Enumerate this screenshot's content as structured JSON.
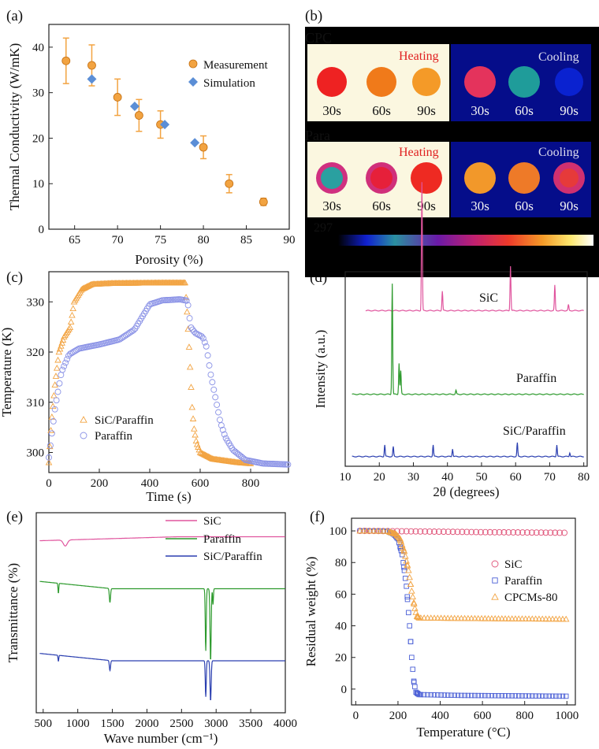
{
  "chart_data": [
    {
      "panel": "(a)",
      "type": "scatter",
      "xlabel": "Porosity (%)",
      "ylabel": "Thermal Conductivity (W/mK)",
      "xlim": [
        62,
        90
      ],
      "ylim": [
        0,
        45
      ],
      "xticks": [
        65,
        70,
        75,
        80,
        85,
        90
      ],
      "yticks": [
        0,
        10,
        20,
        30,
        40
      ],
      "series": [
        {
          "name": "Measurement",
          "color": "#f2a341",
          "points": [
            [
              64,
              37,
              5
            ],
            [
              67,
              36,
              4.5
            ],
            [
              70,
              29,
              4
            ],
            [
              72.5,
              25,
              3.5
            ],
            [
              75,
              23,
              3
            ],
            [
              80,
              18,
              2.5
            ],
            [
              83,
              10,
              2
            ],
            [
              87,
              6,
              0.8
            ]
          ]
        },
        {
          "name": "Simulation",
          "color": "#5b8ed6",
          "points": [
            [
              67,
              33
            ],
            [
              72,
              27
            ],
            [
              75.5,
              23
            ],
            [
              79,
              19
            ]
          ]
        }
      ]
    },
    {
      "panel": "(b)",
      "type": "image",
      "rows": [
        {
          "label": "CPC",
          "heating": "Heating",
          "cooling": "Cooling",
          "times": [
            "30s",
            "60s",
            "90s",
            "30s",
            "60s",
            "90s"
          ]
        },
        {
          "label": "Para",
          "heating": "Heating",
          "cooling": "Cooling",
          "times": [
            "30s",
            "60s",
            "90s",
            "30s",
            "60s",
            "90s"
          ]
        }
      ],
      "scale_min": "297"
    },
    {
      "panel": "(c)",
      "type": "line",
      "xlabel": "Time (s)",
      "ylabel": "Temperature (K)",
      "xlim": [
        0,
        950
      ],
      "ylim": [
        296,
        336
      ],
      "xticks": [
        0,
        200,
        400,
        600,
        800
      ],
      "yticks": [
        300,
        310,
        320,
        330
      ],
      "series": [
        {
          "name": "SiC/Paraffin",
          "color": "#f2a341",
          "points": [
            [
              0,
              298
            ],
            [
              10,
              306
            ],
            [
              25,
              314
            ],
            [
              40,
              320
            ],
            [
              60,
              323
            ],
            [
              85,
              325
            ],
            [
              100,
              330
            ],
            [
              130,
              332.5
            ],
            [
              170,
              333.5
            ],
            [
              250,
              333.7
            ],
            [
              450,
              333.8
            ],
            [
              540,
              333.8
            ],
            [
              548,
              328
            ],
            [
              555,
              322
            ],
            [
              562,
              315
            ],
            [
              568,
              309
            ],
            [
              575,
              305
            ],
            [
              585,
              302
            ],
            [
              600,
              300
            ],
            [
              650,
              298.7
            ],
            [
              750,
              298
            ],
            [
              800,
              297.8
            ]
          ]
        },
        {
          "name": "Paraffin",
          "color": "#8a92e6",
          "points": [
            [
              0,
              299
            ],
            [
              10,
              303
            ],
            [
              25,
              309
            ],
            [
              50,
              316
            ],
            [
              80,
              319.5
            ],
            [
              120,
              320.7
            ],
            [
              200,
              321.5
            ],
            [
              280,
              322.5
            ],
            [
              340,
              324.5
            ],
            [
              370,
              327
            ],
            [
              400,
              329.5
            ],
            [
              450,
              330.3
            ],
            [
              520,
              330.5
            ],
            [
              550,
              330.2
            ],
            [
              562,
              325
            ],
            [
              580,
              323.8
            ],
            [
              610,
              323
            ],
            [
              625,
              321
            ],
            [
              640,
              316
            ],
            [
              660,
              311
            ],
            [
              680,
              306
            ],
            [
              700,
              303
            ],
            [
              730,
              300.5
            ],
            [
              780,
              298.5
            ],
            [
              850,
              297.8
            ],
            [
              950,
              297.6
            ]
          ]
        }
      ]
    },
    {
      "panel": "(d)",
      "type": "line",
      "xlabel": "2θ (degrees)",
      "ylabel": "Intensity (a.u.)",
      "xlim": [
        10,
        81
      ],
      "xticks": [
        10,
        20,
        30,
        40,
        50,
        60,
        70,
        80
      ],
      "series": [
        {
          "name": "SiC",
          "color": "#e0559e",
          "base": 0.8,
          "peaks": [
            [
              32.5,
              0.66
            ],
            [
              38.5,
              0.1
            ],
            [
              58.5,
              0.23
            ],
            [
              71.5,
              0.13
            ],
            [
              75.5,
              0.03
            ]
          ]
        },
        {
          "name": "Paraffin",
          "color": "#2d9a2d",
          "base": 0.37,
          "peaks": [
            [
              23.8,
              0.57
            ],
            [
              25.8,
              0.16
            ],
            [
              26.3,
              0.12
            ],
            [
              42.5,
              0.02
            ]
          ]
        },
        {
          "name": "SiC/Paraffin",
          "color": "#2b3fb0",
          "base": 0.05,
          "peaks": [
            [
              21.6,
              0.06
            ],
            [
              24.1,
              0.05
            ],
            [
              35.8,
              0.06
            ],
            [
              41.5,
              0.04
            ],
            [
              60.5,
              0.07
            ],
            [
              72.1,
              0.06
            ],
            [
              75.9,
              0.02
            ]
          ]
        }
      ]
    },
    {
      "panel": "(e)",
      "type": "line",
      "xlabel": "Wave number  (cm⁻¹)",
      "ylabel": "Transmittance (%)",
      "xlim": [
        400,
        4000
      ],
      "xticks": [
        500,
        1000,
        1500,
        2000,
        2500,
        3000,
        3500,
        4000
      ],
      "series": [
        {
          "name": "SiC",
          "color": "#e0559e",
          "base": 0.86,
          "dips": [
            [
              820,
              0.03,
              40
            ]
          ]
        },
        {
          "name": "Paraffin",
          "color": "#2d9a2d",
          "base": 0.62,
          "dips": [
            [
              720,
              0.05,
              8
            ],
            [
              1465,
              0.07,
              12
            ],
            [
              2850,
              0.31,
              10
            ],
            [
              2920,
              0.36,
              12
            ],
            [
              2955,
              0.08,
              8
            ]
          ]
        },
        {
          "name": "SiC/Paraffin",
          "color": "#2b3fb0",
          "base": 0.26,
          "dips": [
            [
              720,
              0.03,
              8
            ],
            [
              1465,
              0.05,
              12
            ],
            [
              2850,
              0.18,
              10
            ],
            [
              2920,
              0.2,
              12
            ]
          ]
        }
      ]
    },
    {
      "panel": "(f)",
      "type": "scatter",
      "xlabel": "Temperature (°C)",
      "ylabel": "Residual weight (%)",
      "xlim": [
        -20,
        1040
      ],
      "ylim": [
        -10,
        108
      ],
      "xticks": [
        0,
        200,
        400,
        600,
        800,
        1000
      ],
      "yticks": [
        0,
        20,
        40,
        60,
        80,
        100
      ],
      "series": [
        {
          "name": "SiC",
          "color": "#e0557a",
          "marker": "circle",
          "points": [
            [
              20,
              100
            ],
            [
              200,
              99.8
            ],
            [
              400,
              99.5
            ],
            [
              600,
              99.2
            ],
            [
              800,
              99
            ],
            [
              1000,
              98.8
            ]
          ]
        },
        {
          "name": "Paraffin",
          "color": "#4a5fd6",
          "marker": "square",
          "points": [
            [
              20,
              100
            ],
            [
              150,
              99.8
            ],
            [
              180,
              98
            ],
            [
              200,
              95
            ],
            [
              220,
              85
            ],
            [
              240,
              65
            ],
            [
              255,
              40
            ],
            [
              265,
              20
            ],
            [
              275,
              5
            ],
            [
              285,
              -2
            ],
            [
              300,
              -3.5
            ],
            [
              500,
              -4
            ],
            [
              1000,
              -4.5
            ]
          ]
        },
        {
          "name": "CPCMs-80",
          "color": "#f2a341",
          "marker": "triangle",
          "points": [
            [
              20,
              100
            ],
            [
              150,
              99.8
            ],
            [
              190,
              98
            ],
            [
              210,
              95
            ],
            [
              230,
              87
            ],
            [
              250,
              75
            ],
            [
              265,
              62
            ],
            [
              280,
              51
            ],
            [
              290,
              46
            ],
            [
              300,
              45
            ],
            [
              500,
              44.7
            ],
            [
              1000,
              44.2
            ]
          ]
        }
      ]
    }
  ]
}
